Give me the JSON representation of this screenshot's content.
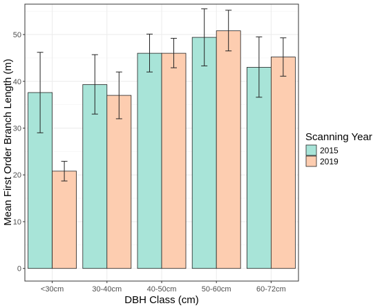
{
  "chart_data": {
    "type": "bar",
    "title": "",
    "xlabel": "DBH Class (cm)",
    "ylabel": "Mean  First Order Branch Length (m)",
    "categories": [
      "<30cm",
      "30-40cm",
      "40-50cm",
      "50-60cm",
      "60-72cm"
    ],
    "ylim": [
      -2.7,
      56.5
    ],
    "yticks": [
      0,
      10,
      20,
      30,
      40,
      50
    ],
    "grid": true,
    "legend": {
      "title": "Scanning Year",
      "position": "right"
    },
    "series": [
      {
        "name": "2015",
        "color": "#a8e4d8",
        "values": [
          37.6,
          39.3,
          46.0,
          49.4,
          43.0
        ],
        "error_low": [
          29.0,
          33.0,
          42.0,
          43.3,
          36.6
        ],
        "error_high": [
          46.2,
          45.7,
          50.1,
          55.5,
          49.5
        ]
      },
      {
        "name": "2019",
        "color": "#fdcdb0",
        "values": [
          20.8,
          37.0,
          46.0,
          50.8,
          45.2
        ],
        "error_low": [
          18.7,
          32.0,
          42.9,
          46.5,
          41.1
        ],
        "error_high": [
          22.9,
          42.0,
          49.2,
          55.2,
          49.3
        ]
      }
    ]
  }
}
